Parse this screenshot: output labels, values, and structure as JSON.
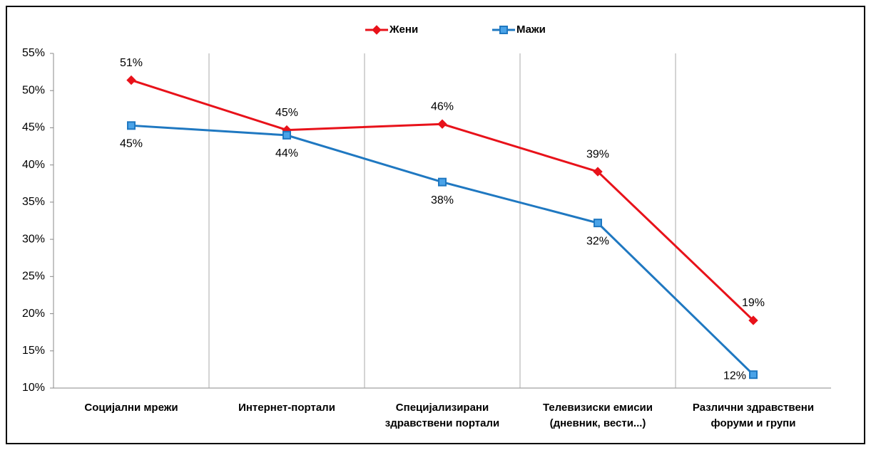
{
  "chart_data": {
    "type": "line",
    "categories": [
      "Социјални мрежи",
      "Интернет-портали",
      "Специјализирани здравствени портали",
      "Телевизиски емисии (дневник, вести...)",
      "Различни здравствени форуми и групи"
    ],
    "series": [
      {
        "name": "Жени",
        "color": "#e8121a",
        "marker": "diamond",
        "values": [
          51.4,
          44.7,
          45.5,
          39.1,
          19.1
        ],
        "value_labels": [
          "51%",
          "45%",
          "46%",
          "39%",
          "19%"
        ]
      },
      {
        "name": "Мажи",
        "color": "#1f78c1",
        "marker": "square",
        "values": [
          45.3,
          44.0,
          37.7,
          32.2,
          11.8
        ],
        "value_labels": [
          "45%",
          "44%",
          "38%",
          "32%",
          "12%"
        ]
      }
    ],
    "ylim": [
      10,
      55
    ],
    "yticks": [
      {
        "value": 10,
        "label": "10%"
      },
      {
        "value": 15,
        "label": "15%"
      },
      {
        "value": 20,
        "label": "20%"
      },
      {
        "value": 25,
        "label": "25%"
      },
      {
        "value": 30,
        "label": "30%"
      },
      {
        "value": 35,
        "label": "35%"
      },
      {
        "value": 40,
        "label": "40%"
      },
      {
        "value": 45,
        "label": "45%"
      },
      {
        "value": 50,
        "label": "50%"
      },
      {
        "value": 55,
        "label": "55%"
      }
    ],
    "legend": "top",
    "grid": true
  }
}
